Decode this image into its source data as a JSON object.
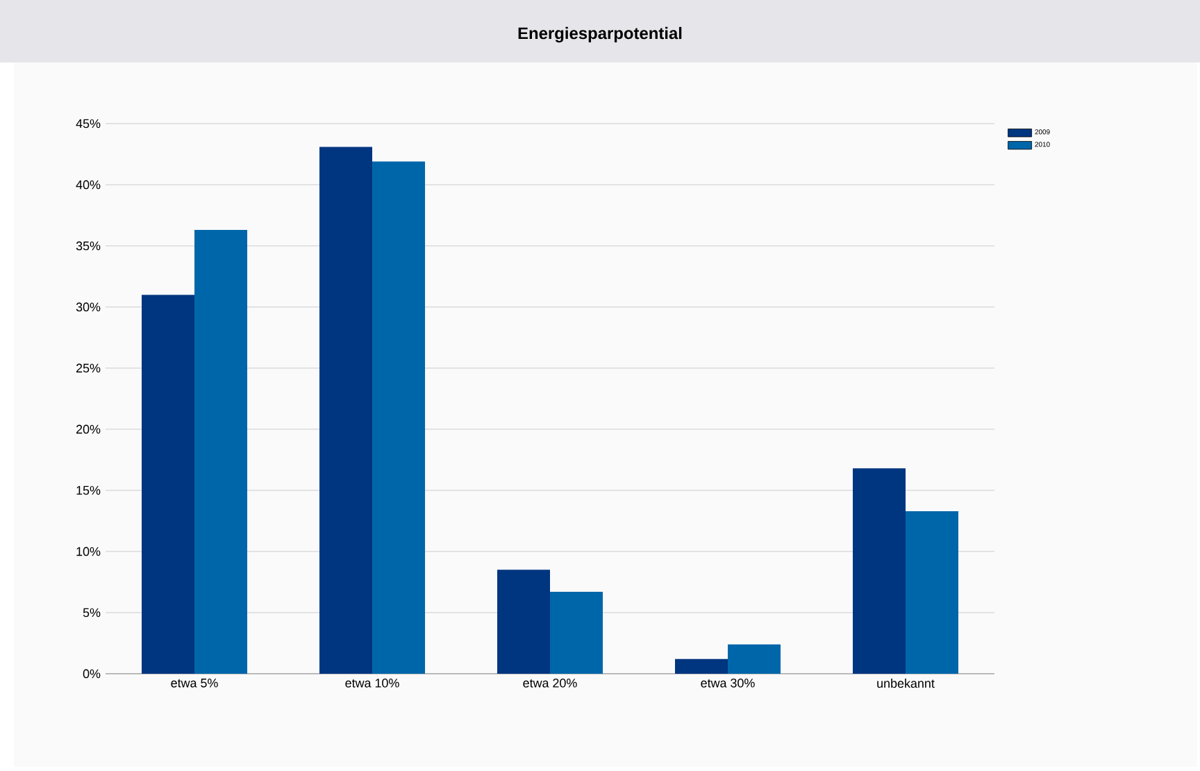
{
  "chart_data": {
    "type": "bar",
    "title": "Energiesparpotential",
    "categories": [
      "etwa 5%",
      "etwa 10%",
      "etwa 20%",
      "etwa 30%",
      "unbekannt"
    ],
    "series": [
      {
        "name": "2009",
        "color": "#003580",
        "values": [
          31.0,
          43.1,
          8.5,
          1.2,
          16.8
        ]
      },
      {
        "name": "2010",
        "color": "#0066aa",
        "values": [
          36.3,
          41.9,
          6.7,
          2.4,
          13.3
        ]
      }
    ],
    "ylim": [
      0,
      45
    ],
    "yticks": [
      {
        "value": 0,
        "label": "0%"
      },
      {
        "value": 5,
        "label": "5%"
      },
      {
        "value": 10,
        "label": "10%"
      },
      {
        "value": 15,
        "label": "15%"
      },
      {
        "value": 20,
        "label": "20%"
      },
      {
        "value": 25,
        "label": "25%"
      },
      {
        "value": 30,
        "label": "30%"
      },
      {
        "value": 35,
        "label": "35%"
      },
      {
        "value": 40,
        "label": "40%"
      },
      {
        "value": 45,
        "label": "45%"
      }
    ],
    "grid": "y",
    "legend": "top right"
  }
}
